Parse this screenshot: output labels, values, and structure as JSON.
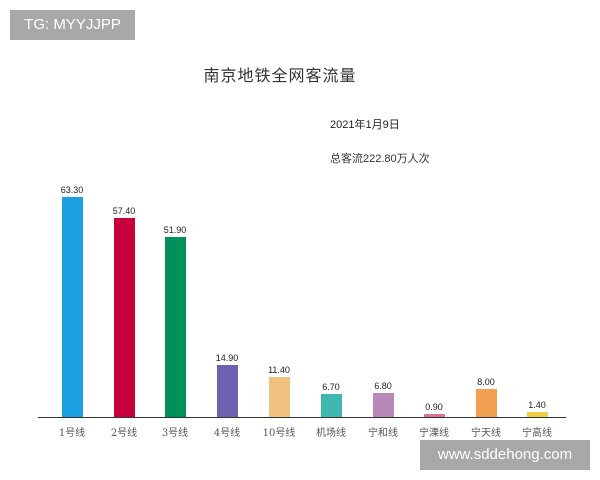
{
  "watermarks": {
    "top": "TG: MYYJJPP",
    "bottom": "www.sddehong.com"
  },
  "header": {
    "title": "南京地铁全网客流量",
    "date": "2021年1月9日",
    "total": "总客流222.80万人次"
  },
  "chart_data": {
    "type": "bar",
    "title": "南京地铁全网客流量",
    "subtitle": "2021年1月9日 总客流222.80万人次",
    "xlabel": "",
    "ylabel": "",
    "categories": [
      "1号线",
      "2号线",
      "3号线",
      "4号线",
      "10号线",
      "机场线",
      "宁和线",
      "宁溧线",
      "宁天线",
      "宁高线"
    ],
    "values": [
      63.3,
      57.4,
      51.9,
      14.9,
      11.4,
      6.7,
      6.8,
      0.9,
      8.0,
      1.4
    ],
    "value_labels": [
      "63.30",
      "57.40",
      "51.90",
      "14.90",
      "11.40",
      "6.70",
      "6.80",
      "0.90",
      "8.00",
      "1.40"
    ],
    "colors": [
      "#1ba1e2",
      "#c8003c",
      "#00915a",
      "#7060b0",
      "#f0c080",
      "#40b8b0",
      "#b888b8",
      "#e07090",
      "#f0a050",
      "#f0d040"
    ],
    "unit": "万人次",
    "ylim": [
      0,
      70
    ],
    "grid": false,
    "legend": "none"
  }
}
